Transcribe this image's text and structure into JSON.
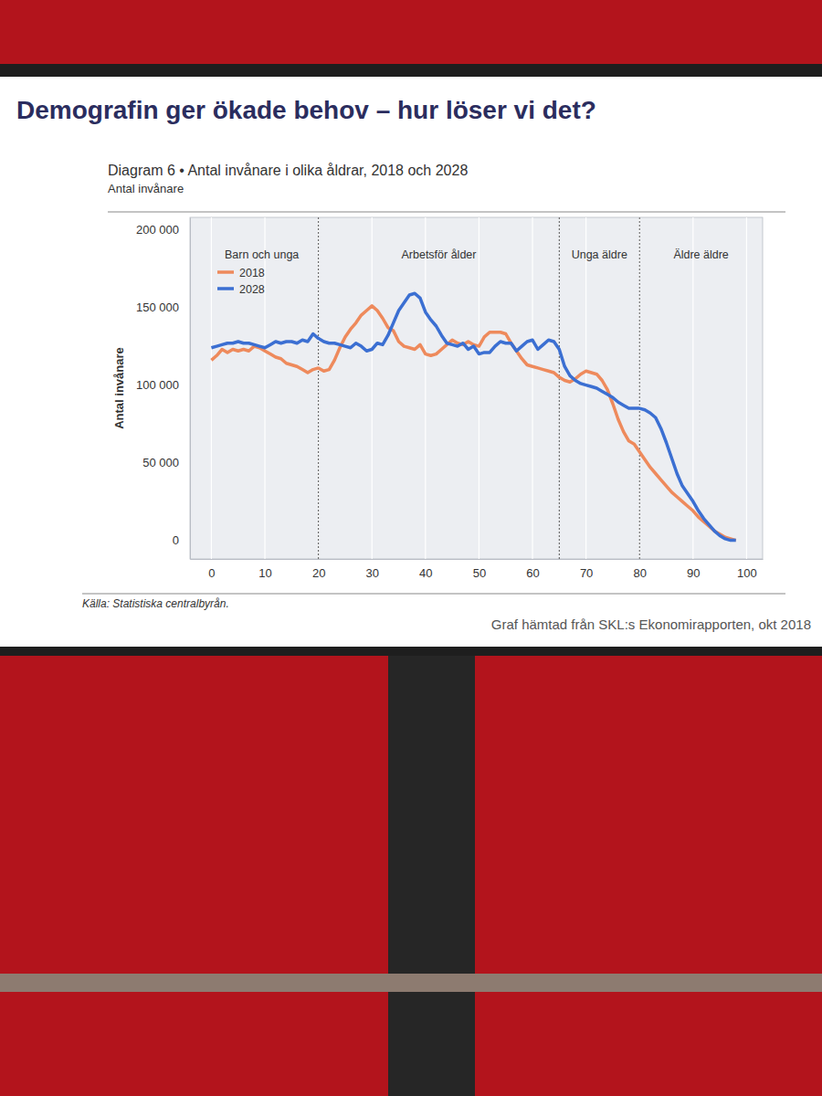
{
  "slide": {
    "title": "Demografin ger ökade behov – hur löser vi det?",
    "footer": "Graf hämtad från SKL:s Ekonomirapporten, okt 2018"
  },
  "chart_data": {
    "type": "line",
    "title": "Diagram 6 • Antal invånare i olika åldrar, 2018 och 2028",
    "subtitle": "Antal invånare",
    "ylabel": "Antal invånare",
    "source": "Källa: Statistiska centralbyrån.",
    "regions": [
      "Barn och unga",
      "Arbetsför ålder",
      "Unga äldre",
      "Äldre äldre"
    ],
    "boundaries": [
      20,
      65,
      80
    ],
    "x": [
      0,
      1,
      2,
      3,
      4,
      5,
      6,
      7,
      8,
      9,
      10,
      11,
      12,
      13,
      14,
      15,
      16,
      17,
      18,
      19,
      20,
      21,
      22,
      23,
      24,
      25,
      26,
      27,
      28,
      29,
      30,
      31,
      32,
      33,
      34,
      35,
      36,
      37,
      38,
      39,
      40,
      41,
      42,
      43,
      44,
      45,
      46,
      47,
      48,
      49,
      50,
      51,
      52,
      53,
      54,
      55,
      56,
      57,
      58,
      59,
      60,
      61,
      62,
      63,
      64,
      65,
      66,
      67,
      68,
      69,
      70,
      71,
      72,
      73,
      74,
      75,
      76,
      77,
      78,
      79,
      80,
      81,
      82,
      83,
      84,
      85,
      86,
      87,
      88,
      89,
      90,
      91,
      92,
      93,
      94,
      95,
      96,
      97,
      98
    ],
    "series": [
      {
        "name": "2018",
        "color": "#ee8a5c",
        "values": [
          116000,
          119000,
          123000,
          121000,
          123000,
          122000,
          123000,
          122000,
          125000,
          124000,
          122000,
          120000,
          118000,
          117000,
          114000,
          113000,
          112000,
          110000,
          108000,
          110000,
          111000,
          109000,
          110000,
          116000,
          124000,
          131000,
          136000,
          140000,
          145000,
          148000,
          151000,
          148000,
          143000,
          137000,
          135000,
          128000,
          125000,
          124000,
          123000,
          126000,
          120000,
          119000,
          120000,
          123000,
          126000,
          129000,
          127000,
          126000,
          128000,
          126000,
          125000,
          131000,
          134000,
          134000,
          134000,
          133000,
          127000,
          122000,
          117000,
          113000,
          112000,
          111000,
          110000,
          109000,
          108000,
          105000,
          103000,
          102000,
          104000,
          107000,
          109000,
          108000,
          107000,
          103000,
          97000,
          88000,
          78000,
          70000,
          64000,
          62000,
          57000,
          52000,
          47000,
          43000,
          39000,
          35000,
          31000,
          28000,
          25000,
          22000,
          19000,
          15000,
          12000,
          9000,
          6000,
          4000,
          2000,
          1000,
          0
        ]
      },
      {
        "name": "2028",
        "color": "#3b6fd2",
        "values": [
          124000,
          125000,
          126000,
          127000,
          127000,
          128000,
          127000,
          127000,
          126000,
          125000,
          124000,
          126000,
          128000,
          127000,
          128000,
          128000,
          127000,
          129000,
          128000,
          133000,
          130000,
          128000,
          127000,
          127000,
          126000,
          125000,
          124000,
          127000,
          125000,
          122000,
          123000,
          127000,
          126000,
          132000,
          140000,
          148000,
          153000,
          158000,
          159000,
          156000,
          147000,
          142000,
          138000,
          132000,
          127000,
          126000,
          125000,
          127000,
          123000,
          125000,
          120000,
          121000,
          121000,
          125000,
          128000,
          127000,
          127000,
          122000,
          125000,
          128000,
          129000,
          123000,
          126000,
          129000,
          128000,
          123000,
          112000,
          106000,
          103000,
          101000,
          100000,
          99000,
          98000,
          96000,
          94000,
          92000,
          89000,
          87000,
          85000,
          85000,
          85000,
          84000,
          82000,
          79000,
          72000,
          63000,
          53000,
          43000,
          35000,
          30000,
          25000,
          19000,
          14000,
          10000,
          6000,
          3000,
          1000,
          0,
          0
        ]
      }
    ],
    "xlim": [
      -4,
      103
    ],
    "xticks": [
      0,
      10,
      20,
      30,
      40,
      50,
      60,
      70,
      80,
      90,
      100
    ],
    "ylim": [
      -12000,
      208000
    ],
    "yticks": [
      0,
      {
        "value": 50000,
        "label": "50 000"
      },
      {
        "value": 100000,
        "label": "100 000"
      },
      {
        "value": 150000,
        "label": "150 000"
      },
      {
        "value": 200000,
        "label": "200 000"
      }
    ],
    "grid": true,
    "legend": "top-left"
  }
}
